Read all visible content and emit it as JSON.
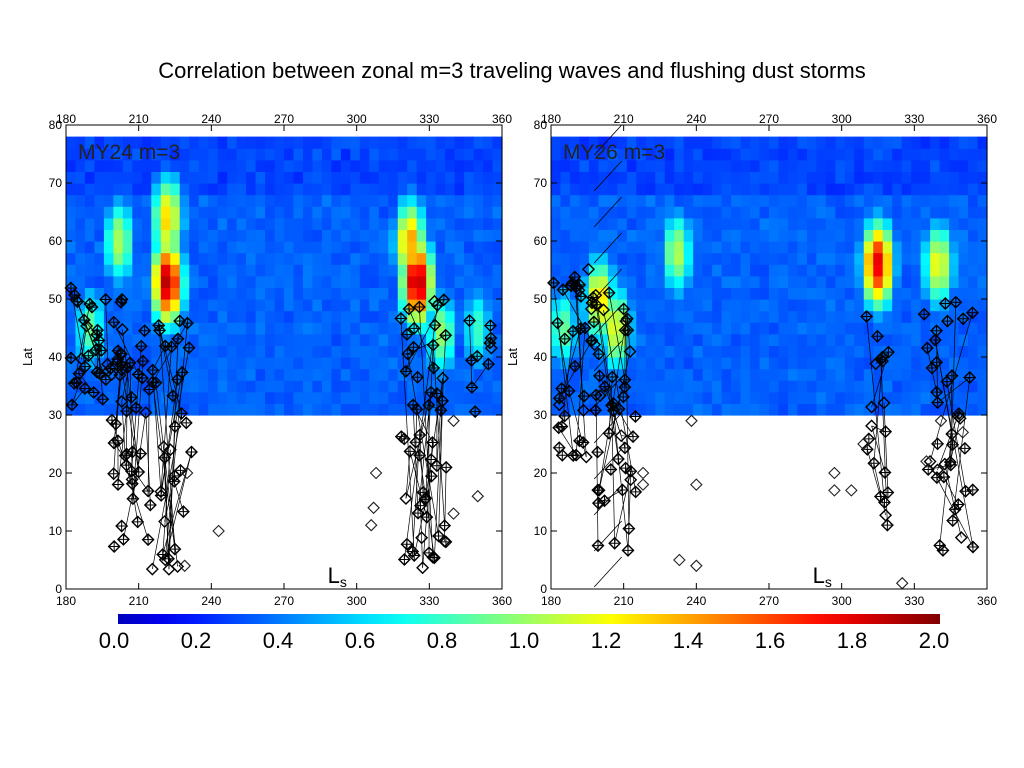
{
  "title": "Correlation between zonal m=3 traveling waves and flushing dust storms",
  "colorbar": {
    "ticks": [
      "0.0",
      "0.2",
      "0.4",
      "0.6",
      "0.8",
      "1.0",
      "1.2",
      "1.4",
      "1.6",
      "1.8",
      "2.0"
    ],
    "colors": [
      "#00007f",
      "#0000ff",
      "#007fff",
      "#00ffff",
      "#7fff7f",
      "#ffff00",
      "#ff7f00",
      "#ff0000",
      "#7f0000"
    ]
  },
  "chart_data": [
    {
      "type": "heatmap",
      "panel_label": "MY24 m=3",
      "xlabel": "L",
      "xlabel_sub": "s",
      "ylabel": "Lat",
      "xlim": [
        180,
        360
      ],
      "ylim": [
        0,
        80
      ],
      "x_ticks": [
        "180",
        "210",
        "240",
        "270",
        "300",
        "330",
        "360"
      ],
      "y_ticks": [
        "0",
        "10",
        "20",
        "30",
        "40",
        "50",
        "60",
        "70",
        "80"
      ],
      "heat_lat_range": [
        30,
        78
      ],
      "clim": [
        0.0,
        2.0
      ],
      "hotspots": [
        {
          "ls": 202,
          "lat": 60,
          "value": 1.05
        },
        {
          "ls": 222,
          "lat": 53,
          "value": 1.9
        },
        {
          "ls": 222,
          "lat": 64,
          "value": 1.3
        },
        {
          "ls": 325,
          "lat": 53,
          "value": 1.95
        },
        {
          "ls": 322,
          "lat": 60,
          "value": 1.4
        },
        {
          "ls": 335,
          "lat": 44,
          "value": 1.0
        },
        {
          "ls": 190,
          "lat": 45,
          "value": 0.9
        },
        {
          "ls": 350,
          "lat": 45,
          "value": 0.8
        }
      ],
      "dust_storm_clusters": [
        {
          "ls_range": [
            182,
            198
          ],
          "lat_range": [
            30,
            52
          ],
          "n": 30
        },
        {
          "ls_range": [
            198,
            215
          ],
          "lat_range": [
            7,
            50
          ],
          "n": 50
        },
        {
          "ls_range": [
            215,
            232
          ],
          "lat_range": [
            3,
            48
          ],
          "n": 35
        },
        {
          "ls_range": [
            318,
            337
          ],
          "lat_range": [
            3,
            50
          ],
          "n": 55
        },
        {
          "ls_range": [
            345,
            360
          ],
          "lat_range": [
            25,
            47
          ],
          "n": 10
        }
      ],
      "open_diamonds": [
        [
          243,
          10
        ],
        [
          308,
          20
        ],
        [
          307,
          14
        ],
        [
          306,
          11
        ],
        [
          340,
          13
        ],
        [
          350,
          16
        ],
        [
          340,
          29
        ],
        [
          230,
          20
        ],
        [
          229,
          4
        ]
      ]
    },
    {
      "type": "heatmap",
      "panel_label": "MY26 m=3",
      "xlabel": "L",
      "xlabel_sub": "s",
      "ylabel": "Lat",
      "xlim": [
        180,
        360
      ],
      "ylim": [
        0,
        80
      ],
      "x_ticks": [
        "180",
        "210",
        "240",
        "270",
        "300",
        "330",
        "360"
      ],
      "y_ticks": [
        "0",
        "10",
        "20",
        "30",
        "40",
        "50",
        "60",
        "70",
        "80"
      ],
      "heat_lat_range": [
        30,
        78
      ],
      "clim": [
        0.0,
        2.0
      ],
      "hotspots": [
        {
          "ls": 200,
          "lat": 50,
          "value": 1.3
        },
        {
          "ls": 207,
          "lat": 45,
          "value": 1.2
        },
        {
          "ls": 232,
          "lat": 58,
          "value": 1.05
        },
        {
          "ls": 315,
          "lat": 56,
          "value": 1.8
        },
        {
          "ls": 340,
          "lat": 56,
          "value": 1.2
        },
        {
          "ls": 185,
          "lat": 45,
          "value": 0.9
        }
      ],
      "dust_storm_clusters": [
        {
          "ls_range": [
            181,
            198
          ],
          "lat_range": [
            22,
            56
          ],
          "n": 40
        },
        {
          "ls_range": [
            198,
            215
          ],
          "lat_range": [
            2,
            52
          ],
          "n": 45
        },
        {
          "ls_range": [
            310,
            320
          ],
          "lat_range": [
            6,
            47
          ],
          "n": 20
        },
        {
          "ls_range": [
            333,
            355
          ],
          "lat_range": [
            6,
            50
          ],
          "n": 40
        }
      ],
      "open_diamonds": [
        [
          218,
          20
        ],
        [
          218,
          18
        ],
        [
          233,
          5
        ],
        [
          238,
          29
        ],
        [
          240,
          18
        ],
        [
          240,
          4
        ],
        [
          297,
          20
        ],
        [
          297,
          17
        ],
        [
          304,
          17
        ],
        [
          309,
          25
        ],
        [
          325,
          1
        ],
        [
          335,
          22
        ],
        [
          341,
          29
        ],
        [
          350,
          27
        ]
      ],
      "hatch": {
        "ls_range": [
          197,
          210
        ],
        "lat_range": [
          0,
          80
        ]
      }
    }
  ]
}
